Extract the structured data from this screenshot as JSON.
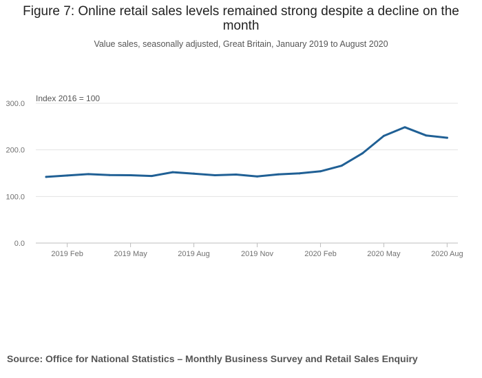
{
  "header": {
    "title": "Figure 7: Online retail sales levels remained strong despite a decline on the month",
    "subtitle": "Value sales, seasonally adjusted, Great Britain, January 2019 to August 2020"
  },
  "footer": {
    "source": "Source: Office for National Statistics – Monthly Business Survey and Retail Sales Enquiry"
  },
  "chart_data": {
    "type": "line",
    "title": "Figure 7: Online retail sales levels remained strong despite a decline on the month",
    "subtitle": "Value sales, seasonally adjusted, Great Britain, January 2019 to August 2020",
    "ylabel": "Index 2016 = 100",
    "xlabel": "",
    "ylim": [
      0,
      300
    ],
    "yticks": [
      "0.0",
      "100.0",
      "200.0",
      "300.0"
    ],
    "ytick_values": [
      0,
      100,
      200,
      300
    ],
    "x": [
      "2019 Jan",
      "2019 Feb",
      "2019 Mar",
      "2019 Apr",
      "2019 May",
      "2019 Jun",
      "2019 Jul",
      "2019 Aug",
      "2019 Sep",
      "2019 Oct",
      "2019 Nov",
      "2019 Dec",
      "2020 Jan",
      "2020 Feb",
      "2020 Mar",
      "2020 Apr",
      "2020 May",
      "2020 Jun",
      "2020 Jul",
      "2020 Aug"
    ],
    "xticks": [
      "2019 Feb",
      "2019 May",
      "2019 Aug",
      "2019 Nov",
      "2020 Feb",
      "2020 May",
      "2020 Aug"
    ],
    "grid": true,
    "line_color": "#206095",
    "series": [
      {
        "values": [
          142,
          145,
          148,
          146,
          145.5,
          144,
          152,
          149,
          145.5,
          147,
          143,
          147.5,
          149.5,
          154,
          166,
          193,
          230,
          248.5,
          231,
          226
        ]
      }
    ]
  }
}
